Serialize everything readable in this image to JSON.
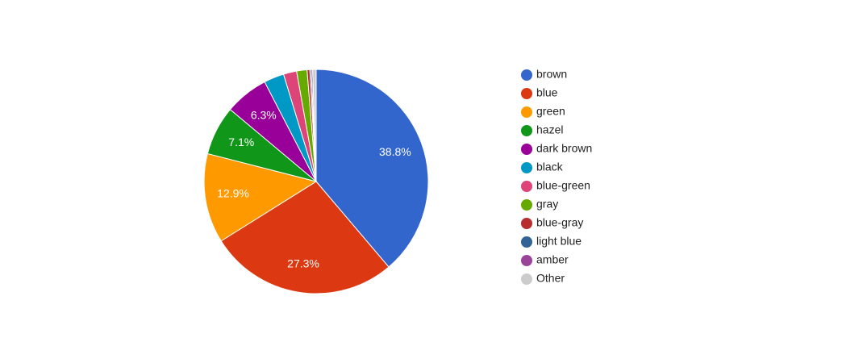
{
  "chart_data": {
    "type": "pie",
    "categories": [
      "brown",
      "blue",
      "green",
      "hazel",
      "dark brown",
      "black",
      "blue-green",
      "gray",
      "blue-gray",
      "light blue",
      "amber",
      "Other"
    ],
    "values": [
      38.8,
      27.3,
      12.9,
      7.1,
      6.3,
      2.9,
      1.9,
      1.5,
      0.4,
      0.2,
      0.2,
      0.5
    ],
    "value_labels": [
      "38.8%",
      "27.3%",
      "12.9%",
      "7.1%",
      "6.3%",
      null,
      null,
      null,
      null,
      null,
      null,
      null
    ],
    "colors": [
      "#3366cc",
      "#dc3912",
      "#ff9900",
      "#109618",
      "#990099",
      "#0099c6",
      "#dd4477",
      "#66aa00",
      "#b82e2e",
      "#316395",
      "#994499",
      "#cccccc"
    ],
    "legend": "right"
  }
}
